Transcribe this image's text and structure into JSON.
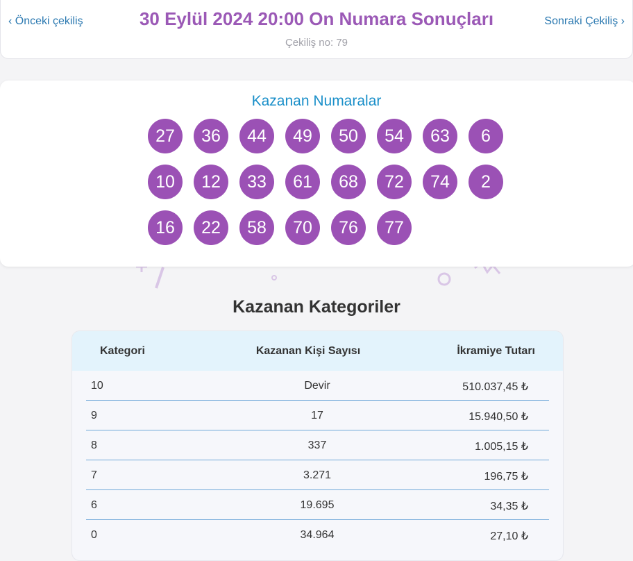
{
  "header": {
    "prev_link": "Önceki çekiliş",
    "title": "30 Eylül 2024 20:00 On Numara Sonuçları",
    "next_link": "Sonraki Çekiliş",
    "draw_no": "Çekiliş no: 79"
  },
  "winning_numbers": {
    "title": "Kazanan Numaralar",
    "numbers": [
      "27",
      "36",
      "44",
      "49",
      "50",
      "54",
      "63",
      "6",
      "10",
      "12",
      "33",
      "61",
      "68",
      "72",
      "74",
      "2",
      "16",
      "22",
      "58",
      "70",
      "76",
      "77"
    ]
  },
  "categories": {
    "title": "Kazanan Kategoriler",
    "table": {
      "headers": [
        "Kategori",
        "Kazanan Kişi Sayısı",
        "İkramiye Tutarı"
      ],
      "rows": [
        [
          "10",
          "Devir",
          "510.037,45 ₺"
        ],
        [
          "9",
          "17",
          "15.940,50 ₺"
        ],
        [
          "8",
          "337",
          "1.005,15 ₺"
        ],
        [
          "7",
          "3.271",
          "196,75 ₺"
        ],
        [
          "6",
          "19.695",
          "34,35 ₺"
        ],
        [
          "0",
          "34.964",
          "27,10 ₺"
        ]
      ]
    }
  }
}
